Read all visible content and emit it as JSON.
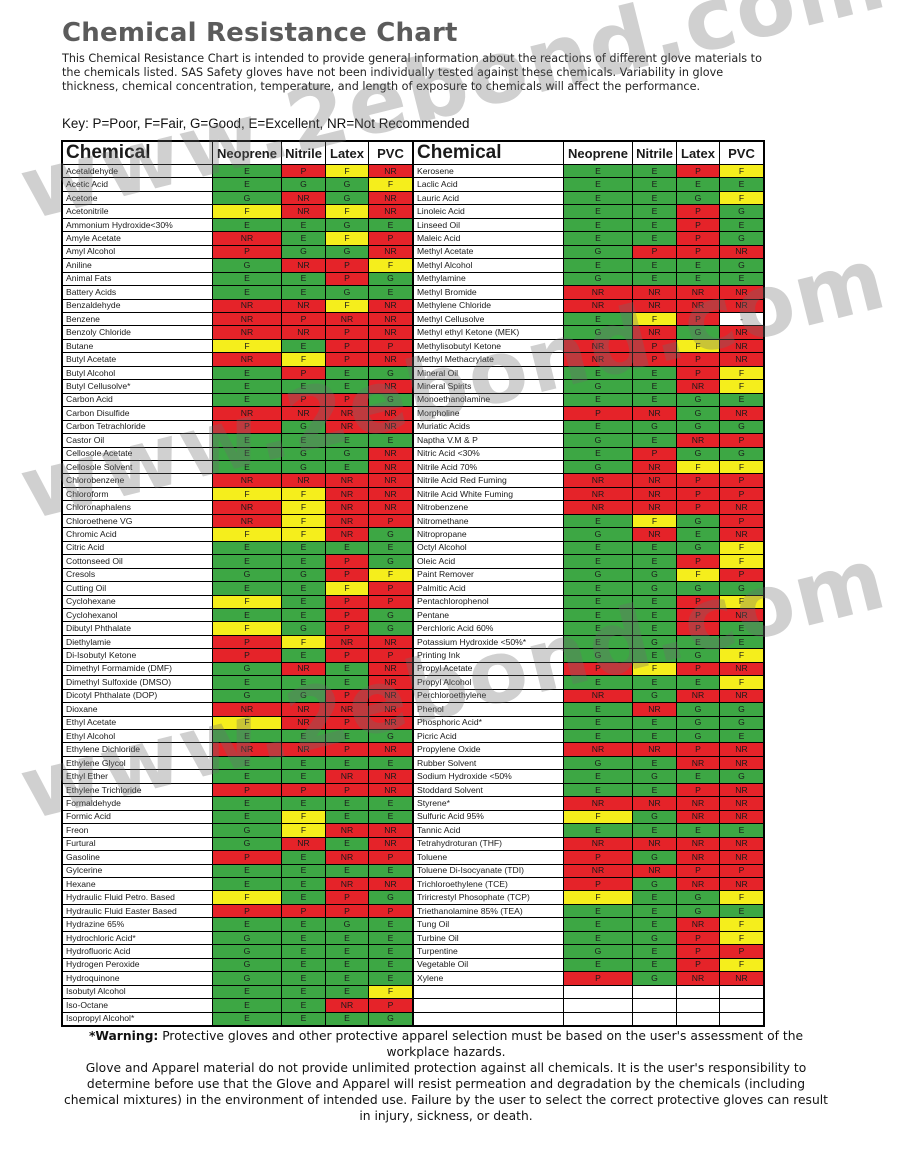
{
  "title": "Chemical Resistance Chart",
  "intro": "This Chemical Resistance Chart is intended to provide general information about the reactions of different glove materials to the chemicals listed. SAS Safety gloves have not been individually tested against these chemicals. Variability in glove thickness, chemical concentration, temperature, and length of exposure to chemicals will affect the performance.",
  "key": "Key: P=Poor, F=Fair, G=Good, E=Excellent, NR=Not Recommended",
  "columns": [
    "Chemical",
    "Neoprene",
    "Nitrile",
    "Latex",
    "PVC"
  ],
  "colors": {
    "E": "#3da744",
    "G": "#3da744",
    "F": "#f5ee1c",
    "P": "#e52329",
    "NR": "#e52329"
  },
  "left_rows": [
    [
      "Acetaldehyde",
      "E",
      "P",
      "F",
      "NR"
    ],
    [
      "Acetic Acid",
      "E",
      "G",
      "G",
      "F"
    ],
    [
      "Acetone",
      "G",
      "NR",
      "G",
      "NR"
    ],
    [
      "Acetonitrile",
      "F",
      "NR",
      "F",
      "NR"
    ],
    [
      "Ammonium Hydroxide<30%",
      "E",
      "E",
      "G",
      "E"
    ],
    [
      "Amyle Acetate",
      "NR",
      "E",
      "F",
      "P"
    ],
    [
      "Amyl Alcohol",
      "P",
      "G",
      "G",
      "NR"
    ],
    [
      "Aniline",
      "G",
      "NR",
      "P",
      "F"
    ],
    [
      "Animal Fats",
      "E",
      "E",
      "P",
      "G"
    ],
    [
      "Battery Acids",
      "E",
      "E",
      "G",
      "E"
    ],
    [
      "Benzaldehyde",
      "NR",
      "NR",
      "F",
      "NR"
    ],
    [
      "Benzene",
      "NR",
      "P",
      "NR",
      "NR"
    ],
    [
      "Benzoly Chloride",
      "NR",
      "NR",
      "P",
      "NR"
    ],
    [
      "Butane",
      "F",
      "E",
      "P",
      "P"
    ],
    [
      "Butyl Acetate",
      "NR",
      "F",
      "P",
      "NR"
    ],
    [
      "Butyl Alcohol",
      "E",
      "P",
      "E",
      "G"
    ],
    [
      "Butyl Cellusolve*",
      "E",
      "E",
      "E",
      "NR"
    ],
    [
      "Carbon Acid",
      "E",
      "P",
      "P",
      "G"
    ],
    [
      "Carbon Disulfide",
      "NR",
      "NR",
      "NR",
      "NR"
    ],
    [
      "Carbon Tetrachloride",
      "P",
      "G",
      "NR",
      "NR"
    ],
    [
      "Castor Oil",
      "E",
      "E",
      "E",
      "E"
    ],
    [
      "Cellosole Acetate",
      "E",
      "G",
      "G",
      "NR"
    ],
    [
      "Cellosole Solvent",
      "E",
      "G",
      "E",
      "NR"
    ],
    [
      "Chlorobenzene",
      "NR",
      "NR",
      "NR",
      "NR"
    ],
    [
      "Chloroform",
      "F",
      "F",
      "NR",
      "NR"
    ],
    [
      "Chloronaphalens",
      "NR",
      "F",
      "NR",
      "NR"
    ],
    [
      "Chloroethene VG",
      "NR",
      "F",
      "NR",
      "P"
    ],
    [
      "Chromic Acid",
      "F",
      "F",
      "NR",
      "G"
    ],
    [
      "Citric Acid",
      "E",
      "E",
      "E",
      "E"
    ],
    [
      "Cottonseed Oil",
      "E",
      "E",
      "P",
      "G"
    ],
    [
      "Cresols",
      "G",
      "G",
      "P",
      "F"
    ],
    [
      "Cutting Oil",
      "E",
      "E",
      "F",
      "P"
    ],
    [
      "Cyclohexane",
      "F",
      "E",
      "P",
      "P"
    ],
    [
      "Cyclohexanol",
      "E",
      "E",
      "P",
      "G"
    ],
    [
      "Dibutyl Phthalate",
      "F",
      "G",
      "P",
      "G"
    ],
    [
      "Diethylamie",
      "P",
      "F",
      "NR",
      "NR"
    ],
    [
      "Di-Isobutyl Ketone",
      "P",
      "E",
      "P",
      "P"
    ],
    [
      "Dimethyl Formamide (DMF)",
      "G",
      "NR",
      "E",
      "NR"
    ],
    [
      "Dimethyl Sulfoxide (DMSO)",
      "E",
      "E",
      "E",
      "NR"
    ],
    [
      "Dicotyl Phthalate (DOP)",
      "G",
      "G",
      "P",
      "NR"
    ],
    [
      "Dioxane",
      "NR",
      "NR",
      "NR",
      "NR"
    ],
    [
      "Ethyl Acetate",
      "F",
      "NR",
      "P",
      "NR"
    ],
    [
      "Ethyl Alcohol",
      "E",
      "E",
      "E",
      "G"
    ],
    [
      "Ethylene Dichloride",
      "NR",
      "NR",
      "P",
      "NR"
    ],
    [
      "Ethylene Glycol",
      "E",
      "E",
      "E",
      "E"
    ],
    [
      "Ethyl Ether",
      "E",
      "E",
      "NR",
      "NR"
    ],
    [
      "Ethylene Trichloride",
      "P",
      "P",
      "P",
      "NR"
    ],
    [
      "Formaldehyde",
      "E",
      "E",
      "E",
      "E"
    ],
    [
      "Formic Acid",
      "E",
      "F",
      "E",
      "E"
    ],
    [
      "Freon",
      "G",
      "F",
      "NR",
      "NR"
    ],
    [
      "Furtural",
      "G",
      "NR",
      "E",
      "NR"
    ],
    [
      "Gasoline",
      "P",
      "E",
      "NR",
      "P"
    ],
    [
      "Gylcerine",
      "E",
      "E",
      "E",
      "E"
    ],
    [
      "Hexane",
      "E",
      "E",
      "NR",
      "NR"
    ],
    [
      "Hydraulic Fluid Petro. Based",
      "F",
      "E",
      "P",
      "G"
    ],
    [
      "Hydraulic Fluid Easter Based",
      "P",
      "P",
      "P",
      "P"
    ],
    [
      "Hydrazine 65%",
      "E",
      "E",
      "G",
      "E"
    ],
    [
      "Hydrochloric Acid*",
      "G",
      "E",
      "E",
      "E"
    ],
    [
      "Hydrofluoric Acid",
      "G",
      "E",
      "E",
      "E"
    ],
    [
      "Hydrogen Peroxide",
      "G",
      "E",
      "E",
      "E"
    ],
    [
      "Hydroquinone",
      "G",
      "E",
      "E",
      "E"
    ],
    [
      "Isobutyl Alcohol",
      "E",
      "E",
      "E",
      "F"
    ],
    [
      "Iso-Octane",
      "E",
      "E",
      "NR",
      "P"
    ],
    [
      "Isopropyl Alcohol*",
      "E",
      "E",
      "E",
      "G"
    ]
  ],
  "right_rows": [
    [
      "Kerosene",
      "E",
      "E",
      "P",
      "F"
    ],
    [
      "Laclic Acid",
      "E",
      "E",
      "E",
      "E"
    ],
    [
      "Lauric Acid",
      "E",
      "E",
      "G",
      "F"
    ],
    [
      "Linoleic Acid",
      "E",
      "E",
      "P",
      "G"
    ],
    [
      "Linseed Oil",
      "E",
      "E",
      "P",
      "E"
    ],
    [
      "Maleic Acid",
      "E",
      "E",
      "P",
      "G"
    ],
    [
      "Methyl Acetate",
      "G",
      "P",
      "P",
      "NR"
    ],
    [
      "Methyl Alcohol",
      "E",
      "E",
      "E",
      "G"
    ],
    [
      "Methylamine",
      "G",
      "E",
      "E",
      "E"
    ],
    [
      "Methyl Bromide",
      "NR",
      "NR",
      "NR",
      "NR"
    ],
    [
      "Methylene Chloride",
      "NR",
      "NR",
      "NR",
      "NR"
    ],
    [
      "Methyl Cellusolve",
      "E",
      "F",
      "P",
      "-"
    ],
    [
      "Methyl ethyl Ketone (MEK)",
      "G",
      "NR",
      "G",
      "NR"
    ],
    [
      "Methylisobutyl Ketone",
      "NR",
      "P",
      "F",
      "NR"
    ],
    [
      "Methyl Methacrylate",
      "NR",
      "P",
      "P",
      "NR"
    ],
    [
      "Mineral Oil",
      "E",
      "E",
      "P",
      "F"
    ],
    [
      "Mineral Spirits",
      "G",
      "E",
      "NR",
      "F"
    ],
    [
      "Monoethanolamine",
      "E",
      "E",
      "G",
      "E"
    ],
    [
      "Morpholine",
      "P",
      "NR",
      "G",
      "NR"
    ],
    [
      "Muriatic Acids",
      "E",
      "G",
      "G",
      "G"
    ],
    [
      "Naptha V.M & P",
      "G",
      "E",
      "NR",
      "P"
    ],
    [
      "Nitric Acid <30%",
      "E",
      "P",
      "G",
      "G"
    ],
    [
      "Nitrile Acid 70%",
      "G",
      "NR",
      "F",
      "F"
    ],
    [
      "Nitrile Acid Red Fuming",
      "NR",
      "NR",
      "P",
      "P"
    ],
    [
      "Nitrile Acid White Fuming",
      "NR",
      "NR",
      "P",
      "P"
    ],
    [
      "Nitrobenzene",
      "NR",
      "NR",
      "P",
      "NR"
    ],
    [
      "Nitromethane",
      "E",
      "F",
      "G",
      "P"
    ],
    [
      "Nitropropane",
      "G",
      "NR",
      "E",
      "NR"
    ],
    [
      "Octyl Alcohol",
      "E",
      "E",
      "G",
      "F"
    ],
    [
      "Oleic Acid",
      "E",
      "E",
      "P",
      "F"
    ],
    [
      "Paint Remover",
      "G",
      "G",
      "F",
      "P"
    ],
    [
      "Palmitic Acid",
      "E",
      "G",
      "G",
      "G"
    ],
    [
      "Pentachlorophenol",
      "E",
      "E",
      "P",
      "F"
    ],
    [
      "Pentane",
      "E",
      "E",
      "P",
      "NR"
    ],
    [
      "Perchloric Acid 60%",
      "E",
      "E",
      "P",
      "E"
    ],
    [
      "Potassium Hydroxide <50%*",
      "E",
      "G",
      "E",
      "E"
    ],
    [
      "Printing Ink",
      "G",
      "E",
      "G",
      "F"
    ],
    [
      "Propyl Acetate",
      "P",
      "F",
      "P",
      "NR"
    ],
    [
      "Propyl Alcohol",
      "E",
      "E",
      "E",
      "F"
    ],
    [
      "Perchloroethylene",
      "NR",
      "G",
      "NR",
      "NR"
    ],
    [
      "Phenol",
      "E",
      "NR",
      "G",
      "G"
    ],
    [
      "Phosphoric Acid*",
      "E",
      "E",
      "G",
      "G"
    ],
    [
      "Picric Acid",
      "E",
      "E",
      "G",
      "E"
    ],
    [
      "Propylene Oxide",
      "NR",
      "NR",
      "P",
      "NR"
    ],
    [
      "Rubber Solvent",
      "G",
      "E",
      "NR",
      "NR"
    ],
    [
      "Sodium Hydroxide <50%",
      "E",
      "G",
      "E",
      "G"
    ],
    [
      "Stoddard Solvent",
      "E",
      "E",
      "P",
      "NR"
    ],
    [
      "Styrene*",
      "NR",
      "NR",
      "NR",
      "NR"
    ],
    [
      "Sulfuric Acid 95%",
      "F",
      "G",
      "NR",
      "NR"
    ],
    [
      "Tannic Acid",
      "E",
      "E",
      "E",
      "E"
    ],
    [
      "Tetrahydroturan (THF)",
      "NR",
      "NR",
      "NR",
      "NR"
    ],
    [
      "Toluene",
      "P",
      "G",
      "NR",
      "NR"
    ],
    [
      "Toluene Di-Isocyanate (TDI)",
      "NR",
      "NR",
      "P",
      "P"
    ],
    [
      "Trichloroethylene (TCE)",
      "P",
      "G",
      "NR",
      "NR"
    ],
    [
      "Triricrestyl Phosophate (TCP)",
      "F",
      "E",
      "G",
      "F"
    ],
    [
      "Triethanolamine 85% (TEA)",
      "E",
      "E",
      "G",
      "E"
    ],
    [
      "Tung Oil",
      "E",
      "E",
      "NR",
      "F"
    ],
    [
      "Turbine Oil",
      "E",
      "G",
      "P",
      "F"
    ],
    [
      "Turpentine",
      "G",
      "E",
      "P",
      "P"
    ],
    [
      "Vegetable Oil",
      "E",
      "E",
      "P",
      "F"
    ],
    [
      "Xylene",
      "P",
      "G",
      "NR",
      "NR"
    ],
    [
      "",
      "",
      "",
      "",
      ""
    ],
    [
      "",
      "",
      "",
      "",
      ""
    ],
    [
      "",
      "",
      "",
      "",
      ""
    ]
  ],
  "warning": {
    "label": "*Warning:",
    "line1": " Protective gloves and other protective apparel selection must be based on the user's assessment of the workplace hazards.",
    "line2": "Glove and Apparel material do not provide unlimited protection against all chemicals. It is the user's responsibility to determine before use that the Glove and Apparel will resist permeation and degradation by the chemicals (including chemical mixtures) in the environment of intended use. Failure by the user to select the correct protective gloves can result in injury, sickness, or death."
  },
  "watermark": "www.2ebond.com"
}
